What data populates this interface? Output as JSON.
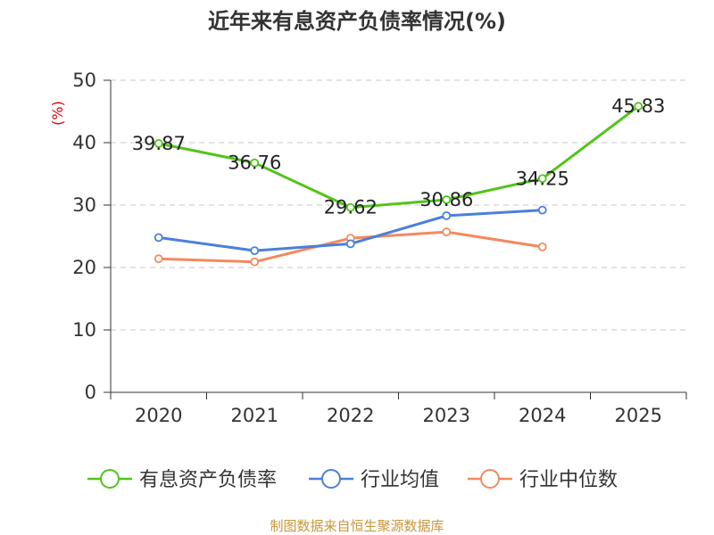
{
  "chart_data": {
    "type": "line",
    "title": "近年来有息资产负债率情况(%)",
    "ylabel": "(%)",
    "xlabel": "",
    "categories": [
      "2020",
      "2021",
      "2022",
      "2023",
      "2024",
      "2025"
    ],
    "ylim": [
      0,
      50
    ],
    "yticks": [
      "0",
      "10",
      "20",
      "30",
      "40",
      "50"
    ],
    "grid": true,
    "legend_position": "bottom",
    "series": [
      {
        "name": "有息资产负债率",
        "color": "#52c41a",
        "values": [
          39.87,
          36.76,
          29.62,
          30.86,
          34.25,
          45.83
        ],
        "labels": [
          "39.87",
          "36.76",
          "29.62",
          "30.86",
          "34.25",
          "45.83"
        ]
      },
      {
        "name": "行业均值",
        "color": "#4a7fdc",
        "values": [
          24.8,
          22.7,
          23.8,
          28.3,
          29.2,
          null
        ]
      },
      {
        "name": "行业中位数",
        "color": "#f4895f",
        "values": [
          21.4,
          20.9,
          24.7,
          25.7,
          23.3,
          null
        ]
      }
    ],
    "source": "制图数据来自恒生聚源数据库",
    "source_color": "#c8963c",
    "unit_color": "#e00000"
  }
}
